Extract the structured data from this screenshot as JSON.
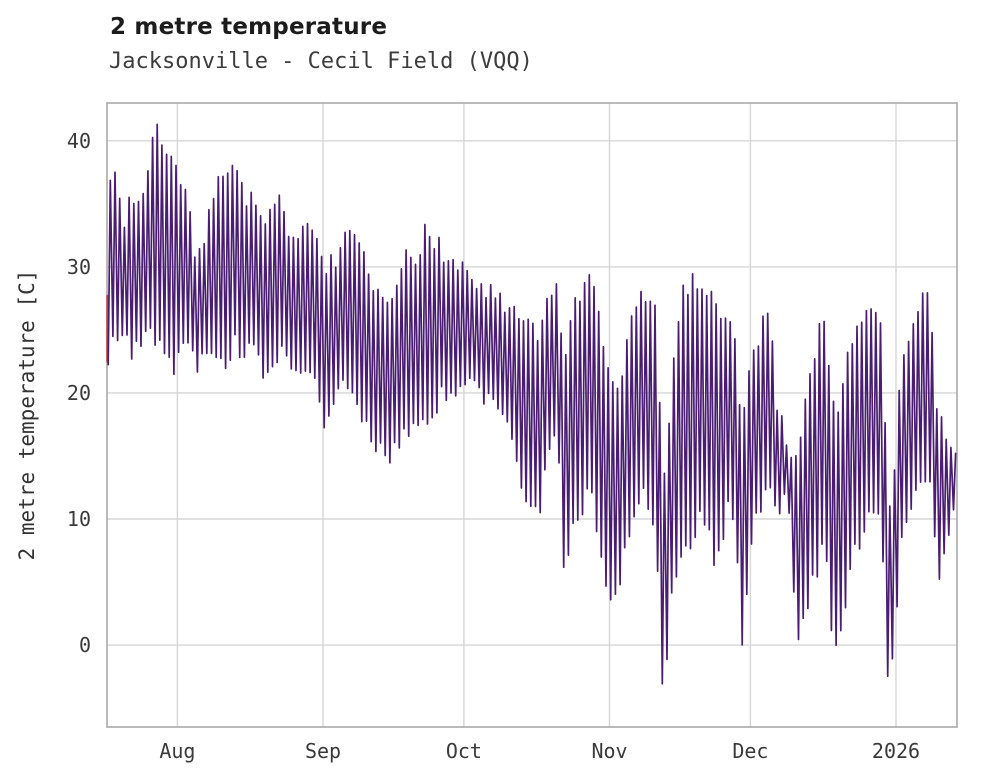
{
  "chart_data": {
    "type": "line",
    "title": "2 metre temperature",
    "subtitle": "Jacksonville - Cecil Field (VQQ)",
    "ylabel": "2 metre temperature [C]",
    "xlabel": "",
    "legend": "none",
    "grid": true,
    "background": "#ffffff",
    "line_color": "#4a1c72",
    "grid_color": "#d6d6d6",
    "spine_color": "#a9a9a9",
    "tick_text_color": "#3a3a3a",
    "ylim": [
      -6.5,
      43
    ],
    "yticks": [
      0,
      10,
      20,
      30,
      40
    ],
    "x_total_days": 181,
    "xticks": [
      {
        "label": "Aug",
        "day": 15
      },
      {
        "label": "Sep",
        "day": 46
      },
      {
        "label": "Oct",
        "day": 76
      },
      {
        "label": "Nov",
        "day": 107
      },
      {
        "label": "Dec",
        "day": 137
      },
      {
        "label": "2026",
        "day": 168
      }
    ],
    "start_accent": {
      "color": "#bf4432",
      "day": 0.1,
      "from_c": 22.5,
      "to_c": 27.7
    },
    "daily_envelope": {
      "description": "Approximate daily min/max temperature (C) read from the plot; day 0 is the first plotted day (mid-July 2025), tick days mark month starts.",
      "columns": [
        "day_index",
        "min_c",
        "max_c"
      ],
      "rows": [
        [
          0,
          23,
          38
        ],
        [
          2,
          24,
          37
        ],
        [
          4,
          25,
          33
        ],
        [
          5,
          23,
          36
        ],
        [
          7,
          24,
          35
        ],
        [
          9,
          26,
          38
        ],
        [
          10,
          24,
          40
        ],
        [
          11,
          25,
          41
        ],
        [
          12,
          24,
          40
        ],
        [
          14,
          22,
          38
        ],
        [
          15,
          23,
          37
        ],
        [
          17,
          24,
          35
        ],
        [
          19,
          22,
          31
        ],
        [
          21,
          24,
          33
        ],
        [
          23,
          23,
          36
        ],
        [
          25,
          22,
          37
        ],
        [
          27,
          24,
          39
        ],
        [
          29,
          23,
          36
        ],
        [
          31,
          24,
          35
        ],
        [
          33,
          22,
          33
        ],
        [
          35,
          21,
          34
        ],
        [
          37,
          23,
          35
        ],
        [
          39,
          22,
          33
        ],
        [
          41,
          21,
          32
        ],
        [
          43,
          22,
          33
        ],
        [
          45,
          20,
          32
        ],
        [
          47,
          17,
          30
        ],
        [
          49,
          20,
          31
        ],
        [
          51,
          21,
          32
        ],
        [
          53,
          19,
          32
        ],
        [
          55,
          18,
          30
        ],
        [
          57,
          16,
          28
        ],
        [
          59,
          15,
          27
        ],
        [
          60,
          14,
          26
        ],
        [
          62,
          16,
          29
        ],
        [
          64,
          17,
          31
        ],
        [
          66,
          18,
          30
        ],
        [
          68,
          18,
          34
        ],
        [
          70,
          19,
          32
        ],
        [
          72,
          20,
          31
        ],
        [
          74,
          20,
          30
        ],
        [
          76,
          20,
          30
        ],
        [
          78,
          21,
          29
        ],
        [
          80,
          20,
          28
        ],
        [
          82,
          19,
          28
        ],
        [
          84,
          19,
          27
        ],
        [
          86,
          17,
          26
        ],
        [
          88,
          13,
          26
        ],
        [
          90,
          11,
          25
        ],
        [
          92,
          10,
          24
        ],
        [
          94,
          15,
          28
        ],
        [
          96,
          17,
          29
        ],
        [
          97,
          6,
          22
        ],
        [
          99,
          9,
          26
        ],
        [
          101,
          11,
          28
        ],
        [
          103,
          12,
          29
        ],
        [
          105,
          8,
          25
        ],
        [
          107,
          3,
          21
        ],
        [
          109,
          4,
          20
        ],
        [
          111,
          9,
          25
        ],
        [
          113,
          11,
          27
        ],
        [
          115,
          12,
          28
        ],
        [
          117,
          8,
          27
        ],
        [
          118,
          -3.5,
          15
        ],
        [
          119,
          -2,
          12
        ],
        [
          120,
          3,
          20
        ],
        [
          122,
          6,
          27
        ],
        [
          124,
          8,
          29
        ],
        [
          126,
          10,
          29
        ],
        [
          128,
          9,
          28
        ],
        [
          130,
          6,
          27
        ],
        [
          132,
          11,
          26
        ],
        [
          134,
          10,
          24
        ],
        [
          135,
          -1,
          17
        ],
        [
          137,
          8,
          22
        ],
        [
          139,
          11,
          25
        ],
        [
          141,
          12,
          27
        ],
        [
          143,
          11,
          18
        ],
        [
          145,
          12,
          16
        ],
        [
          147,
          -0.5,
          15
        ],
        [
          149,
          3,
          21
        ],
        [
          151,
          6,
          24
        ],
        [
          153,
          8,
          26
        ],
        [
          154,
          2,
          20
        ],
        [
          156,
          0,
          18
        ],
        [
          158,
          6,
          24
        ],
        [
          160,
          8,
          26
        ],
        [
          162,
          10,
          26
        ],
        [
          164,
          10,
          26
        ],
        [
          165,
          9,
          25
        ],
        [
          166,
          -2,
          14
        ],
        [
          167,
          -2.5,
          10
        ],
        [
          168,
          2,
          16
        ],
        [
          169,
          8,
          22
        ],
        [
          171,
          11,
          24
        ],
        [
          173,
          13,
          27
        ],
        [
          175,
          14,
          28
        ],
        [
          177,
          5,
          18
        ],
        [
          179,
          8,
          16
        ],
        [
          181,
          11,
          16
        ]
      ]
    }
  }
}
